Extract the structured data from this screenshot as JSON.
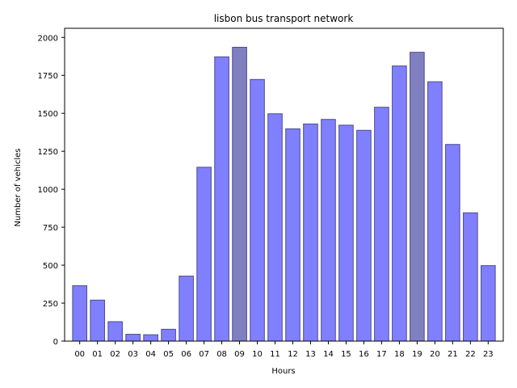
{
  "chart_data": {
    "type": "bar",
    "title": "lisbon bus transport network",
    "xlabel": "Hours",
    "ylabel": "Number of vehicles",
    "categories": [
      "00",
      "01",
      "02",
      "03",
      "04",
      "05",
      "06",
      "07",
      "08",
      "09",
      "10",
      "11",
      "12",
      "13",
      "14",
      "15",
      "16",
      "17",
      "18",
      "19",
      "20",
      "21",
      "22",
      "23"
    ],
    "values": [
      365,
      270,
      128,
      45,
      42,
      78,
      428,
      1145,
      1872,
      1935,
      1723,
      1497,
      1398,
      1430,
      1460,
      1422,
      1388,
      1540,
      1812,
      1902,
      1708,
      1295,
      845,
      497
    ],
    "highlighted": [
      "09",
      "19"
    ],
    "ylim": [
      0,
      2060
    ],
    "yticks": [
      0,
      250,
      500,
      750,
      1000,
      1250,
      1500,
      1750,
      2000
    ],
    "grid": false,
    "colors": {
      "bar": "#8080ff",
      "bar_highlight": "#8080c0",
      "bar_edge": "#4a4a90"
    }
  }
}
